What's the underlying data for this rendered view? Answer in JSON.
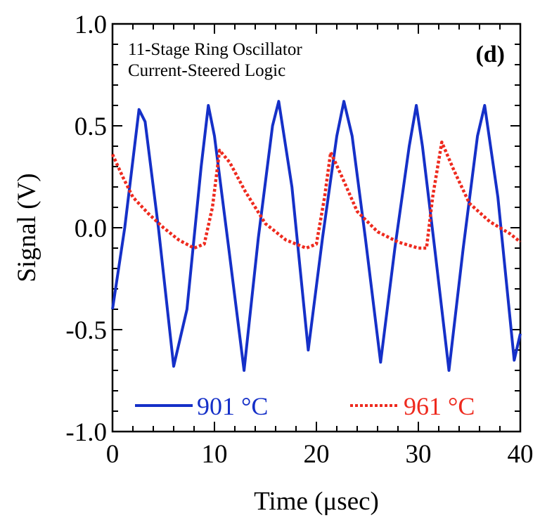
{
  "chart_data": {
    "type": "line",
    "xlabel": "Time (μsec)",
    "ylabel": "Signal (V)",
    "xlim": [
      0,
      40
    ],
    "ylim": [
      -1.0,
      1.0
    ],
    "xticks": [
      "0",
      "10",
      "20",
      "30",
      "40"
    ],
    "yticks": [
      "-1.0",
      "-0.5",
      "0.0",
      "0.5",
      "1.0"
    ],
    "annotation_lines": [
      "11-Stage Ring Oscillator",
      "Current-Steered Logic"
    ],
    "panel_label": "(d)",
    "legend_position": "bottom",
    "colors": {
      "series1": "#1530c8",
      "series2": "#ee2a1e"
    },
    "series": [
      {
        "name": "901 °C",
        "style": "solid",
        "x": [
          0,
          1.2,
          2.6,
          3.2,
          4.5,
          6.0,
          7.3,
          8.7,
          9.4,
          10.0,
          11.4,
          12.9,
          14.3,
          15.7,
          16.3,
          17.6,
          19.2,
          20.6,
          22.0,
          22.7,
          23.5,
          24.8,
          26.3,
          27.7,
          29.1,
          29.8,
          30.4,
          31.6,
          33.0,
          34.4,
          35.8,
          36.5,
          37.8,
          39.4,
          40.0
        ],
        "y": [
          -0.4,
          0.0,
          0.58,
          0.52,
          0.0,
          -0.68,
          -0.4,
          0.3,
          0.6,
          0.45,
          -0.1,
          -0.7,
          -0.05,
          0.5,
          0.62,
          0.2,
          -0.6,
          -0.05,
          0.45,
          0.62,
          0.45,
          -0.05,
          -0.66,
          -0.1,
          0.4,
          0.6,
          0.4,
          -0.1,
          -0.7,
          -0.1,
          0.45,
          0.6,
          0.15,
          -0.65,
          -0.52
        ]
      },
      {
        "name": "961 °C",
        "style": "dotted",
        "x": [
          0,
          1.0,
          2.0,
          3.5,
          5.0,
          6.5,
          8.0,
          9.0,
          9.8,
          10.5,
          11.5,
          13.0,
          15.0,
          17.0,
          19.0,
          20.0,
          20.8,
          21.4,
          22.5,
          24.0,
          26.0,
          28.0,
          30.0,
          30.8,
          31.4,
          32.3,
          33.5,
          35.0,
          37.0,
          39.0,
          40.0
        ],
        "y": [
          0.36,
          0.25,
          0.15,
          0.07,
          0.0,
          -0.06,
          -0.1,
          -0.08,
          0.1,
          0.38,
          0.32,
          0.18,
          0.02,
          -0.06,
          -0.1,
          -0.08,
          0.15,
          0.37,
          0.25,
          0.08,
          -0.02,
          -0.07,
          -0.1,
          -0.1,
          0.15,
          0.42,
          0.28,
          0.12,
          0.03,
          -0.03,
          -0.07
        ]
      }
    ]
  }
}
